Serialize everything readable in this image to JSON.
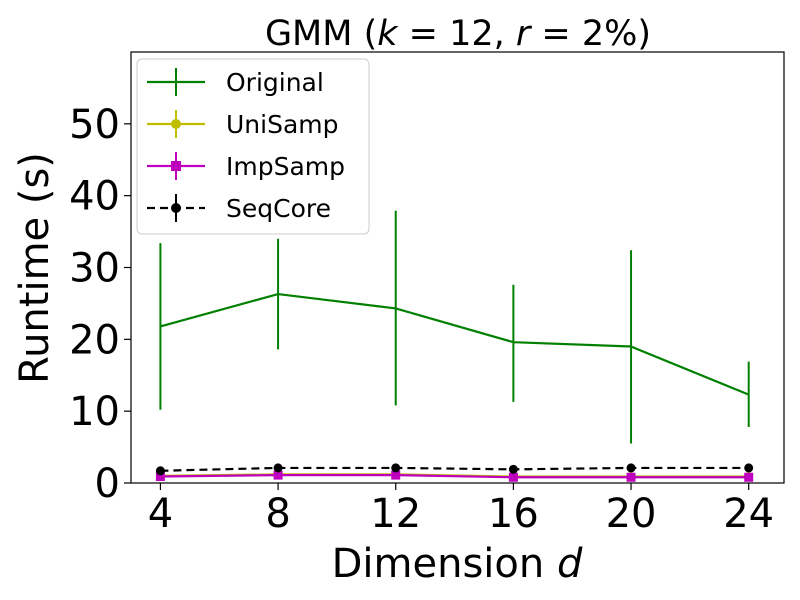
{
  "chart_data": {
    "type": "line",
    "title_prefix": "GMM (",
    "title_k": "k",
    "title_k_eq": " = 12, ",
    "title_r": "r",
    "title_r_eq": " = 2%)",
    "xlabel_main": "Dimension ",
    "xlabel_var": "d",
    "ylabel": "Runtime (s)",
    "x": [
      4,
      8,
      12,
      16,
      20,
      24
    ],
    "x_tick_labels": [
      "4",
      "8",
      "12",
      "16",
      "20",
      "24"
    ],
    "xlim": [
      3,
      25.2
    ],
    "ylim": [
      0,
      60
    ],
    "y_ticks": [
      0,
      10,
      20,
      30,
      40,
      50
    ],
    "y_tick_labels": [
      "0",
      "10",
      "20",
      "30",
      "40",
      "50"
    ],
    "grid": false,
    "legend_position": "top-left",
    "series": [
      {
        "name": "Original",
        "color": "#008000",
        "marker": "none",
        "linestyle": "solid",
        "values": [
          21.8,
          26.3,
          24.3,
          19.6,
          19.0,
          12.3
        ],
        "err_low": [
          10.2,
          18.6,
          10.8,
          11.3,
          5.5,
          7.8
        ],
        "err_high": [
          33.4,
          34.0,
          37.9,
          27.6,
          32.4,
          16.9
        ]
      },
      {
        "name": "UniSamp",
        "color": "#bfbf00",
        "marker": "circle",
        "linestyle": "solid",
        "values": [
          1.0,
          1.2,
          1.2,
          0.9,
          0.9,
          0.9
        ],
        "err_low": [
          0.9,
          1.1,
          1.1,
          0.8,
          0.8,
          0.8
        ],
        "err_high": [
          1.1,
          1.3,
          1.3,
          1.0,
          1.0,
          1.0
        ]
      },
      {
        "name": "ImpSamp",
        "color": "#bf00bf",
        "marker": "square",
        "linestyle": "solid",
        "values": [
          0.9,
          1.1,
          1.1,
          0.8,
          0.8,
          0.8
        ],
        "err_low": [
          0.8,
          1.0,
          1.0,
          0.7,
          0.7,
          0.7
        ],
        "err_high": [
          1.0,
          1.2,
          1.2,
          0.9,
          0.9,
          0.9
        ]
      },
      {
        "name": "SeqCore",
        "color": "#000000",
        "marker": "circle",
        "linestyle": "dashed",
        "values": [
          1.7,
          2.1,
          2.1,
          1.9,
          2.1,
          2.1
        ],
        "err_low": [
          1.6,
          2.0,
          2.0,
          1.8,
          2.0,
          2.0
        ],
        "err_high": [
          1.8,
          2.2,
          2.2,
          2.0,
          2.2,
          2.2
        ]
      }
    ]
  }
}
